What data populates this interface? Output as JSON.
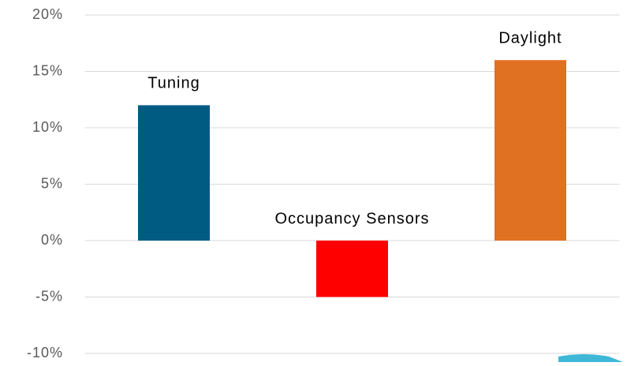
{
  "chart_data": {
    "type": "bar",
    "categories": [
      "Tuning",
      "Occupancy Sensors",
      "Daylight"
    ],
    "values": [
      12,
      -5,
      16
    ],
    "colors": [
      "#005b82",
      "#ff0000",
      "#e07022"
    ],
    "ylim": [
      -10,
      20
    ],
    "yticks": [
      {
        "value": -10,
        "label": "-10%"
      },
      {
        "value": -5,
        "label": "-5%"
      },
      {
        "value": 0,
        "label": "0%"
      },
      {
        "value": 5,
        "label": "5%"
      },
      {
        "value": 10,
        "label": "10%"
      },
      {
        "value": 15,
        "label": "15%"
      },
      {
        "value": 20,
        "label": "20%"
      }
    ],
    "grid": true
  }
}
